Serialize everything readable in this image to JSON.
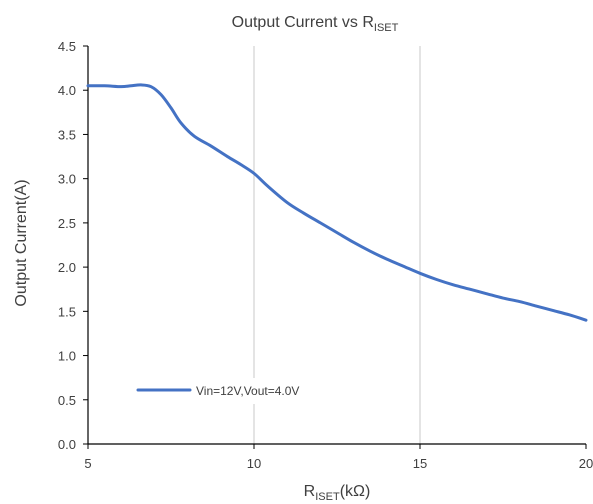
{
  "chart_data": {
    "type": "line",
    "title": {
      "main": "Output Current vs R",
      "sub": "ISET"
    },
    "xlabel": {
      "main": "R",
      "sub": "ISET",
      "suffix": "(kΩ)"
    },
    "ylabel": "Output Current(A)",
    "xlim": [
      5,
      20
    ],
    "ylim": [
      0,
      4.5
    ],
    "x_ticks": [
      5,
      10,
      15,
      20
    ],
    "x_tick_labels": [
      "5",
      "10",
      "15",
      "20"
    ],
    "y_ticks": [
      0,
      0.5,
      1.0,
      1.5,
      2.0,
      2.5,
      3.0,
      3.5,
      4.0,
      4.5
    ],
    "y_tick_labels": [
      "0.0",
      "0.5",
      "1.0",
      "1.5",
      "2.0",
      "2.5",
      "3.0",
      "3.5",
      "4.0",
      "4.5"
    ],
    "grid": {
      "x": true,
      "y": false
    },
    "legend_position": "bottom-left",
    "series": [
      {
        "name": "Vin=12V,Vout=4.0V",
        "color": "#4472C4",
        "x": [
          5,
          5.5,
          6,
          6.3,
          6.6,
          6.9,
          7.2,
          7.5,
          7.8,
          8.2,
          8.7,
          9.2,
          9.6,
          10,
          10.4,
          11,
          11.5,
          12,
          12.5,
          13,
          13.5,
          14,
          14.5,
          15,
          15.5,
          16,
          16.5,
          17,
          17.5,
          18,
          18.5,
          19,
          19.5,
          20
        ],
        "y": [
          4.05,
          4.05,
          4.04,
          4.05,
          4.06,
          4.04,
          3.95,
          3.8,
          3.63,
          3.48,
          3.37,
          3.25,
          3.16,
          3.06,
          2.92,
          2.73,
          2.61,
          2.5,
          2.39,
          2.28,
          2.18,
          2.09,
          2.01,
          1.93,
          1.86,
          1.8,
          1.75,
          1.7,
          1.65,
          1.61,
          1.56,
          1.51,
          1.46,
          1.4
        ]
      }
    ]
  }
}
